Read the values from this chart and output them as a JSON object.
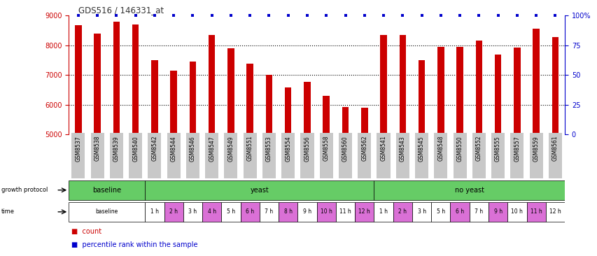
{
  "title": "GDS516 / 146331_at",
  "samples": [
    "GSM8537",
    "GSM8538",
    "GSM8539",
    "GSM8540",
    "GSM8542",
    "GSM8544",
    "GSM8546",
    "GSM8547",
    "GSM8549",
    "GSM8551",
    "GSM8553",
    "GSM8554",
    "GSM8556",
    "GSM8558",
    "GSM8560",
    "GSM8562",
    "GSM8541",
    "GSM8543",
    "GSM8545",
    "GSM8548",
    "GSM8550",
    "GSM8552",
    "GSM8555",
    "GSM8557",
    "GSM8559",
    "GSM8561"
  ],
  "counts": [
    8660,
    8390,
    8780,
    8690,
    7490,
    7140,
    7440,
    8340,
    7890,
    7380,
    6990,
    6570,
    6760,
    6290,
    5930,
    5900,
    8350,
    8350,
    7500,
    7940,
    7940,
    8150,
    7680,
    7910,
    8560,
    8280
  ],
  "ylim_left": [
    5000,
    9000
  ],
  "ylim_right": [
    0,
    100
  ],
  "yticks_left": [
    5000,
    6000,
    7000,
    8000,
    9000
  ],
  "yticks_right": [
    0,
    25,
    50,
    75,
    100
  ],
  "bar_color": "#CC0000",
  "percentile_color": "#0000CC",
  "title_color": "#333333",
  "left_axis_color": "#CC0000",
  "right_axis_color": "#0000CC",
  "bg_color": "#FFFFFF",
  "grid_color": "#000000",
  "tick_label_bg": "#C8C8C8",
  "green_color": "#66CC66",
  "purple_color": "#DA70D6",
  "time_data": [
    [
      0,
      3,
      "baseline",
      "#FFFFFF"
    ],
    [
      4,
      4,
      "1 h",
      "#FFFFFF"
    ],
    [
      5,
      5,
      "2 h",
      "#DA70D6"
    ],
    [
      6,
      6,
      "3 h",
      "#FFFFFF"
    ],
    [
      7,
      7,
      "4 h",
      "#DA70D6"
    ],
    [
      8,
      8,
      "5 h",
      "#FFFFFF"
    ],
    [
      9,
      9,
      "6 h",
      "#DA70D6"
    ],
    [
      10,
      10,
      "7 h",
      "#FFFFFF"
    ],
    [
      11,
      11,
      "8 h",
      "#DA70D6"
    ],
    [
      12,
      12,
      "9 h",
      "#FFFFFF"
    ],
    [
      13,
      13,
      "10 h",
      "#DA70D6"
    ],
    [
      14,
      14,
      "11 h",
      "#FFFFFF"
    ],
    [
      15,
      15,
      "12 h",
      "#DA70D6"
    ],
    [
      16,
      16,
      "1 h",
      "#FFFFFF"
    ],
    [
      17,
      17,
      "2 h",
      "#DA70D6"
    ],
    [
      18,
      18,
      "3 h",
      "#FFFFFF"
    ],
    [
      19,
      19,
      "5 h",
      "#FFFFFF"
    ],
    [
      20,
      20,
      "6 h",
      "#DA70D6"
    ],
    [
      21,
      21,
      "7 h",
      "#FFFFFF"
    ],
    [
      22,
      22,
      "9 h",
      "#DA70D6"
    ],
    [
      23,
      23,
      "10 h",
      "#FFFFFF"
    ],
    [
      24,
      24,
      "11 h",
      "#DA70D6"
    ],
    [
      25,
      25,
      "12 h",
      "#FFFFFF"
    ]
  ],
  "gp_groups": [
    [
      0,
      3,
      "baseline",
      "#66CC66"
    ],
    [
      4,
      15,
      "yeast",
      "#66CC66"
    ],
    [
      16,
      25,
      "no yeast",
      "#66CC66"
    ]
  ]
}
